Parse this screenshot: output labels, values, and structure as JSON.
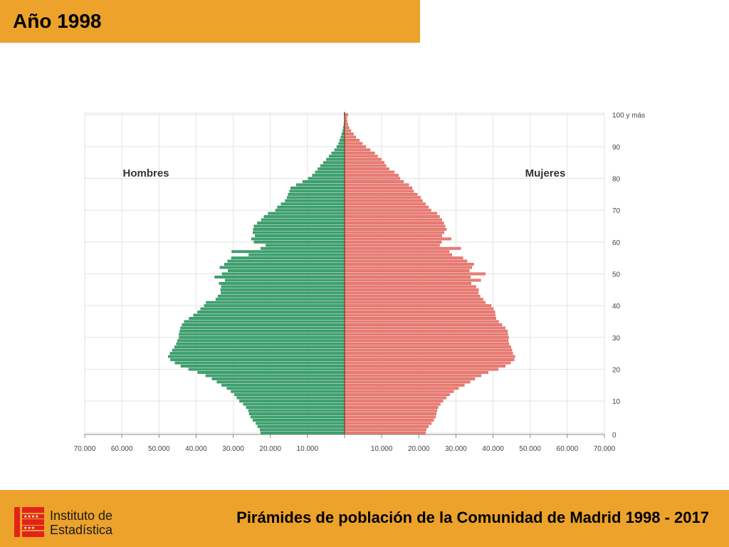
{
  "header": {
    "title": "Año 1998"
  },
  "footer": {
    "title": "Pirámides de población de la Comunidad de Madrid  1998 - 2017",
    "logo_line1": "Instituto de",
    "logo_line2": "Estadística"
  },
  "colors": {
    "banner": "#eca22b",
    "men": "#3aa36e",
    "women": "#ec7b72",
    "logo_red": "#e2231a"
  },
  "chart_data": {
    "type": "bar",
    "orientation": "horizontal",
    "subtype": "population-pyramid",
    "series": [
      {
        "name": "Hombres",
        "color": "#3aa36e",
        "values": [
          22600,
          22800,
          23400,
          23900,
          24700,
          25300,
          25700,
          25900,
          26500,
          27300,
          28300,
          29000,
          29700,
          30600,
          31700,
          33100,
          34400,
          35700,
          37400,
          39600,
          42000,
          44100,
          45700,
          46900,
          47500,
          47000,
          46400,
          45800,
          45300,
          45000,
          44600,
          44600,
          44400,
          44200,
          43800,
          43200,
          41900,
          40700,
          39600,
          38800,
          37800,
          37300,
          34700,
          34100,
          33300,
          33400,
          33200,
          33800,
          32200,
          35000,
          33000,
          31400,
          33600,
          32400,
          31500,
          30500,
          25800,
          30400,
          22600,
          21200,
          24400,
          25100,
          24100,
          24700,
          24600,
          24400,
          23500,
          22400,
          21700,
          20600,
          18600,
          18100,
          17100,
          16000,
          15500,
          15200,
          14800,
          14500,
          13000,
          11300,
          9800,
          8700,
          7900,
          7200,
          6500,
          5700,
          4900,
          4200,
          3500,
          2700,
          2100,
          1600,
          1300,
          1000,
          750,
          500,
          320,
          180,
          100,
          60,
          150
        ],
        "type": "bar"
      },
      {
        "name": "Mujeres",
        "color": "#ec7b72",
        "values": [
          21800,
          22000,
          22600,
          23400,
          24000,
          24500,
          24700,
          24900,
          25200,
          25800,
          26500,
          27400,
          28300,
          29400,
          30700,
          32300,
          33800,
          35100,
          36800,
          38700,
          41400,
          43300,
          44700,
          45700,
          45900,
          45300,
          45100,
          44800,
          44300,
          44100,
          44200,
          44000,
          43900,
          43300,
          42400,
          41500,
          40800,
          40600,
          40500,
          40100,
          39500,
          37900,
          37300,
          36500,
          36000,
          36100,
          35400,
          34100,
          36700,
          33900,
          37900,
          33600,
          34300,
          34800,
          33000,
          31900,
          28900,
          28200,
          31300,
          25600,
          26100,
          28700,
          26200,
          26800,
          27400,
          27100,
          26700,
          26200,
          25600,
          24900,
          23300,
          22600,
          21800,
          21000,
          20500,
          19600,
          18600,
          18200,
          17300,
          15900,
          14900,
          14500,
          13400,
          12000,
          11200,
          10700,
          9900,
          8900,
          8100,
          6900,
          5700,
          4800,
          4000,
          3000,
          2400,
          1700,
          1200,
          900,
          700,
          600,
          900
        ],
        "type": "bar"
      }
    ],
    "labels": {
      "left": "Hombres",
      "right": "Mujeres"
    },
    "ages": {
      "min": 0,
      "max": 100
    },
    "y_ticks": [
      "0",
      "10",
      "20",
      "30",
      "40",
      "50",
      "60",
      "70",
      "80",
      "90",
      "100 y más"
    ],
    "x_ticks_left": [
      "70.000",
      "60.000",
      "50.000",
      "40.000",
      "30.000",
      "20.000",
      "10.000"
    ],
    "x_ticks_right": [
      "10.000",
      "20.000",
      "30.000",
      "40.000",
      "50.000",
      "60.000",
      "70.000"
    ],
    "xlim": [
      -70000,
      70000
    ],
    "grid": true
  }
}
